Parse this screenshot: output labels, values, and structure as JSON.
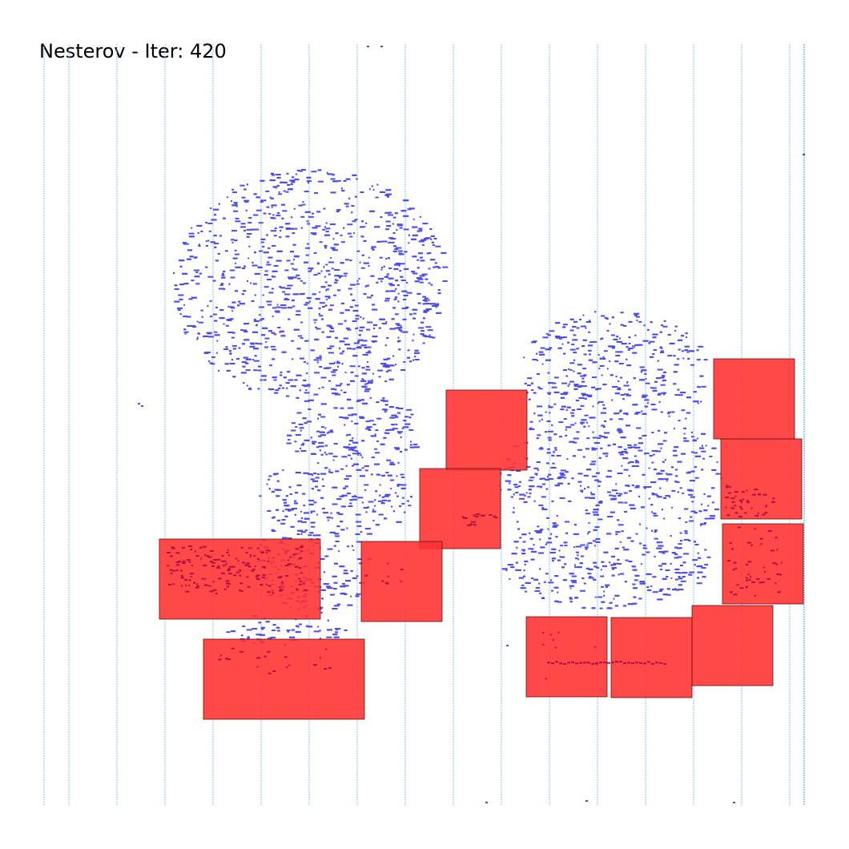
{
  "title": "Nesterov - Iter: 420",
  "colors": {
    "background": "#ffffff",
    "row_line": "#7fc4f0",
    "cell": "#4b4bf0",
    "macro_fill": "#ff3030",
    "macro_edge": "#6a0d0d"
  },
  "macros": [
    {
      "id": "macro-1"
    },
    {
      "id": "macro-2"
    },
    {
      "id": "macro-3"
    },
    {
      "id": "macro-4"
    },
    {
      "id": "macro-5"
    },
    {
      "id": "macro-6"
    },
    {
      "id": "macro-7"
    },
    {
      "id": "macro-8"
    },
    {
      "id": "macro-9"
    },
    {
      "id": "macro-10"
    },
    {
      "id": "macro-11"
    },
    {
      "id": "macro-12"
    },
    {
      "id": "macro-13"
    }
  ]
}
